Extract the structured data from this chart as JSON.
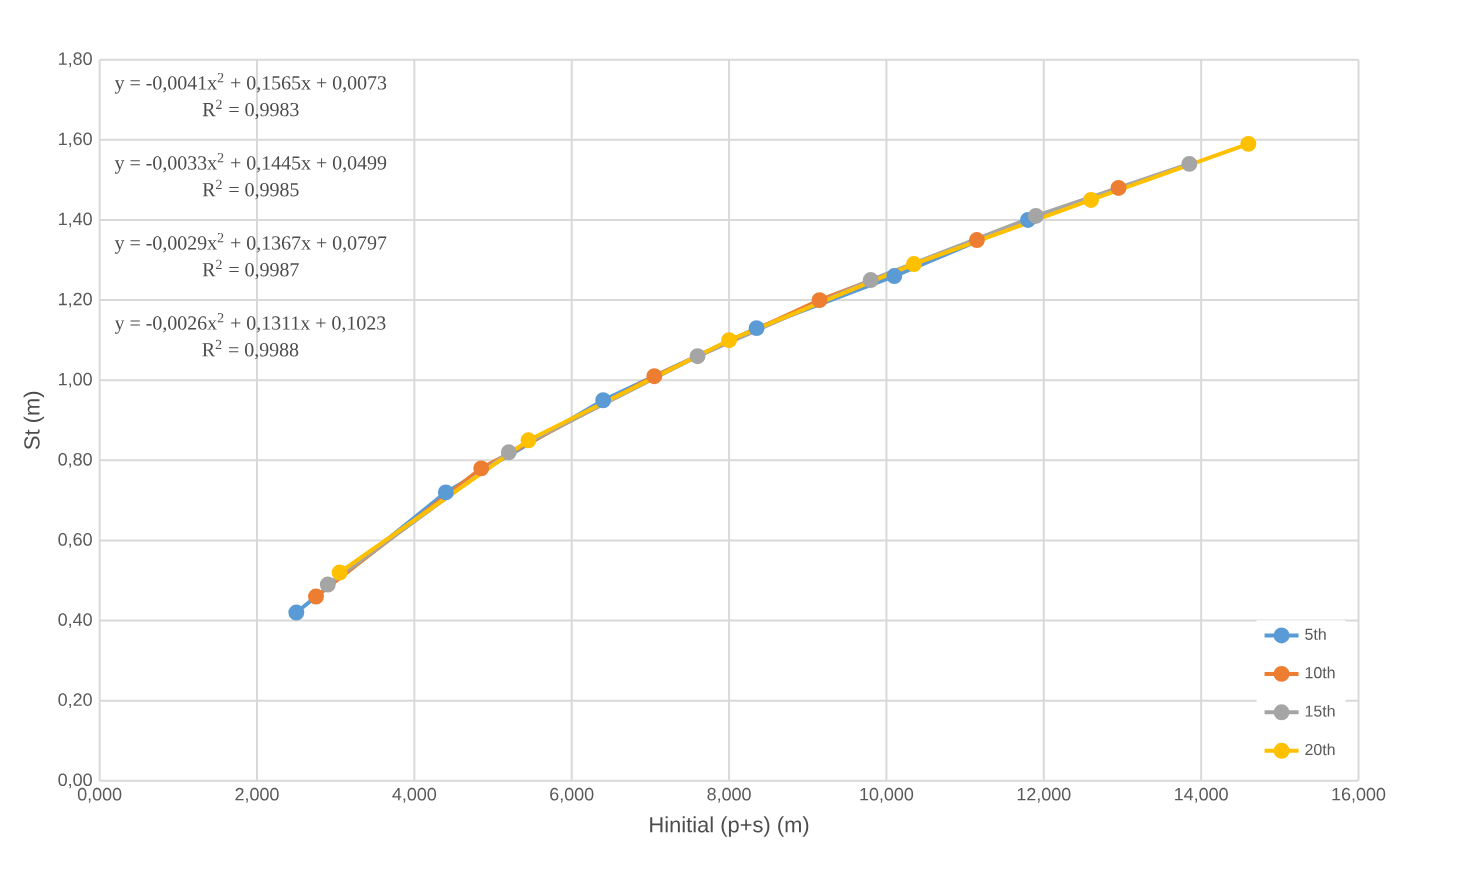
{
  "chart_data": {
    "type": "line",
    "xlabel": "Hinitial (p+s) (m)",
    "ylabel": "St (m)",
    "xlim": [
      0,
      16
    ],
    "ylim": [
      0,
      1.8
    ],
    "xticks": [
      {
        "value": 0,
        "label": "0,000"
      },
      {
        "value": 2,
        "label": "2,000"
      },
      {
        "value": 4,
        "label": "4,000"
      },
      {
        "value": 6,
        "label": "6,000"
      },
      {
        "value": 8,
        "label": "8,000"
      },
      {
        "value": 10,
        "label": "10,000"
      },
      {
        "value": 12,
        "label": "12,000"
      },
      {
        "value": 14,
        "label": "14,000"
      },
      {
        "value": 16,
        "label": "16,000"
      }
    ],
    "yticks": [
      {
        "value": 0,
        "label": "0,00"
      },
      {
        "value": 0.2,
        "label": "0,20"
      },
      {
        "value": 0.4,
        "label": "0,40"
      },
      {
        "value": 0.6,
        "label": "0,60"
      },
      {
        "value": 0.8,
        "label": "0,80"
      },
      {
        "value": 1.0,
        "label": "1,00"
      },
      {
        "value": 1.2,
        "label": "1,20"
      },
      {
        "value": 1.4,
        "label": "1,40"
      },
      {
        "value": 1.6,
        "label": "1,60"
      },
      {
        "value": 1.8,
        "label": "1,80"
      }
    ],
    "grid": true,
    "legend": "bottom right",
    "marker": "circle",
    "line_style": "solid",
    "series": [
      {
        "name": "5th",
        "color": "#5b9bd5",
        "x": [
          2.5,
          4.4,
          6.4,
          8.35,
          10.1,
          11.8
        ],
        "values": [
          0.42,
          0.72,
          0.95,
          1.13,
          1.26,
          1.4
        ]
      },
      {
        "name": "10th",
        "color": "#ed7d31",
        "x": [
          2.75,
          4.85,
          7.05,
          9.15,
          11.15,
          12.95
        ],
        "values": [
          0.46,
          0.78,
          1.01,
          1.2,
          1.35,
          1.48
        ]
      },
      {
        "name": "15th",
        "color": "#a5a5a5",
        "x": [
          2.9,
          5.2,
          7.6,
          9.8,
          11.9,
          13.85
        ],
        "values": [
          0.49,
          0.82,
          1.06,
          1.25,
          1.41,
          1.54
        ]
      },
      {
        "name": "20th",
        "color": "#ffc000",
        "x": [
          3.05,
          5.45,
          8.0,
          10.35,
          12.6,
          14.6
        ],
        "values": [
          0.52,
          0.85,
          1.1,
          1.29,
          1.45,
          1.59
        ]
      }
    ],
    "annotations": [
      "y = -0,0041x$^{2}$ + 0,1565x + 0,0073",
      "R$^{2}$ = 0,9983",
      "y = -0,0033x$^{2}$ + 0,1445x + 0,0499",
      "R$^{2}$ = 0,9985",
      "y = -0,0029x$^{2}$ + 0,1367x + 0,0797",
      "R$^{2}$ = 0,9987",
      "y = -0,0026x$^{2}$ + 0,1311x + 0,1023",
      "R$^{2}$ = 0,9988"
    ]
  }
}
